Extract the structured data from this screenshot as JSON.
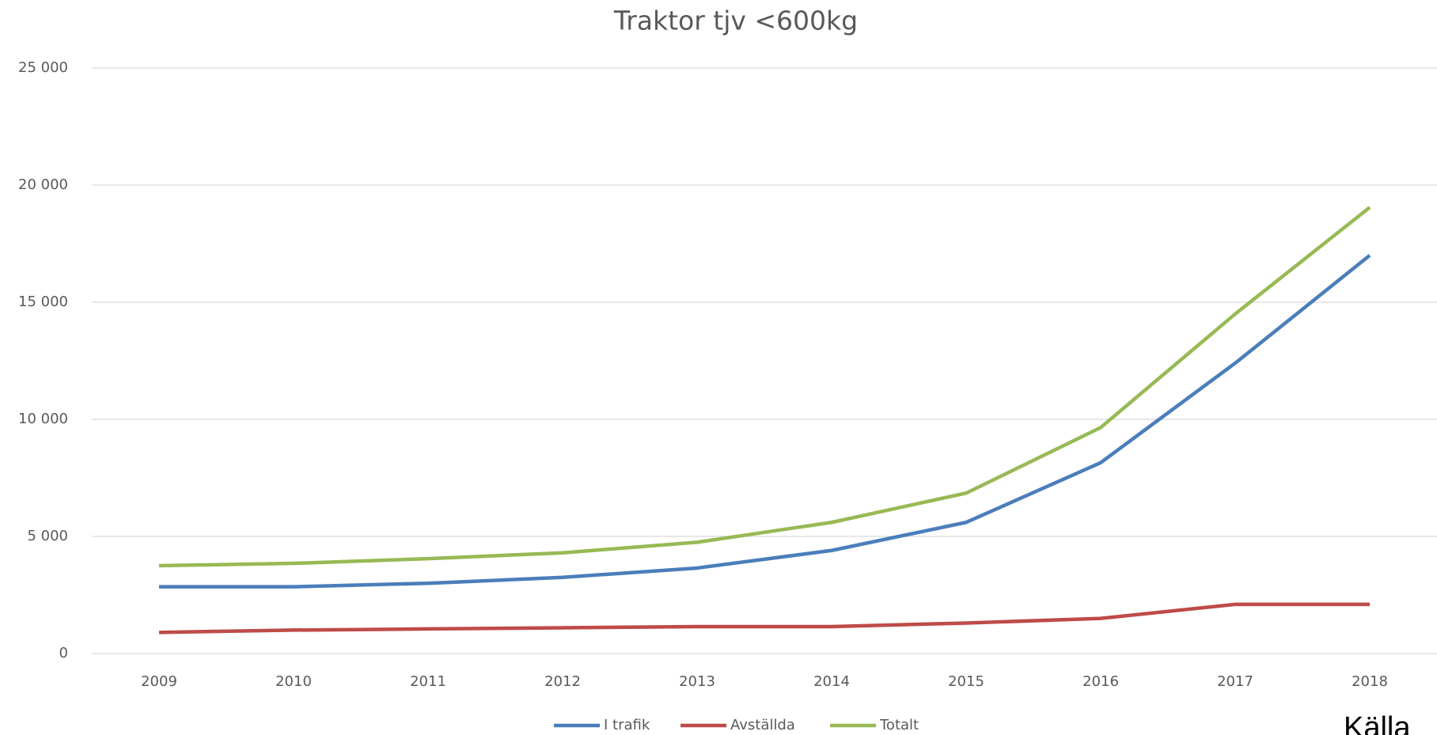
{
  "chart_data": {
    "type": "line",
    "title": "Traktor tjv <600kg",
    "categories": [
      "2009",
      "2010",
      "2011",
      "2012",
      "2013",
      "2014",
      "2015",
      "2016",
      "2017",
      "2018"
    ],
    "series": [
      {
        "name": "I trafik",
        "color": "#4a7ebb",
        "values": [
          2850,
          2850,
          3000,
          3250,
          3650,
          4400,
          5600,
          8150,
          12400,
          17000
        ]
      },
      {
        "name": "Avställda",
        "color": "#be4b48",
        "values": [
          900,
          1000,
          1050,
          1100,
          1150,
          1150,
          1300,
          1500,
          2100,
          2100
        ]
      },
      {
        "name": "Totalt",
        "color": "#98b954",
        "values": [
          3750,
          3850,
          4050,
          4300,
          4750,
          5600,
          6850,
          9650,
          14500,
          19050
        ]
      }
    ],
    "ylim": [
      0,
      25000
    ],
    "yticks": [
      0,
      {
        "value": 5000,
        "label": "5 000"
      },
      {
        "value": 10000,
        "label": "10 000"
      },
      {
        "value": 15000,
        "label": "15 000"
      },
      {
        "value": 20000,
        "label": "20 000"
      },
      {
        "value": 25000,
        "label": "25 000"
      }
    ],
    "grid": true,
    "legend": "bottom",
    "note": "Källa"
  }
}
